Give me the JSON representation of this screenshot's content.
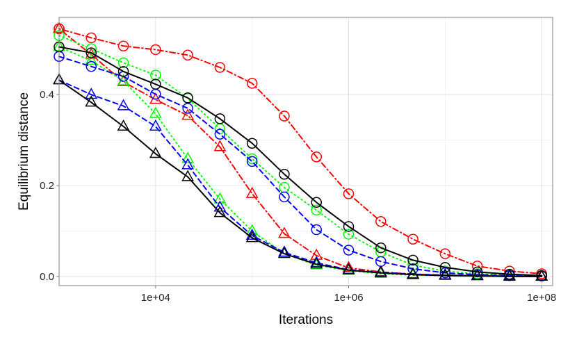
{
  "chart_data": {
    "type": "line",
    "title": "",
    "xlabel": "Iterations",
    "ylabel": "Equilibrium distance",
    "x_scale": "log10",
    "xlim": [
      1000,
      130000000
    ],
    "ylim": [
      -0.02,
      0.57
    ],
    "x_ticks": [
      10000,
      1000000,
      100000000
    ],
    "x_tick_labels": [
      "1e+04",
      "1e+06",
      "1e+08"
    ],
    "y_ticks": [
      0.0,
      0.2,
      0.4
    ],
    "y_tick_labels": [
      "0.0",
      "0.2",
      "0.4"
    ],
    "grid": true,
    "legend": "none",
    "series": [
      {
        "color": "#ff0000",
        "dash": "dotdash",
        "marker": "circle",
        "x": [
          1000,
          1000,
          2154,
          4642,
          10000,
          21544,
          46416,
          100000,
          215443,
          464159,
          1000000,
          2154435,
          4641589,
          10000000,
          21544347,
          46415888,
          100000000
        ],
        "y": [
          0.545,
          0.545,
          0.525,
          0.507,
          0.499,
          0.487,
          0.46,
          0.425,
          0.353,
          0.263,
          0.182,
          0.121,
          0.082,
          0.05,
          0.023,
          0.012,
          0.006
        ]
      },
      {
        "color": "#ff0000",
        "dash": "dotdash",
        "marker": "triangle",
        "x": [
          1000,
          1000,
          2154,
          4642,
          10000,
          21544,
          46416,
          100000,
          215443,
          464159,
          1000000,
          2154435,
          4641589,
          10000000,
          21544347,
          46415888,
          100000000
        ],
        "y": [
          0.545,
          0.545,
          0.488,
          0.428,
          0.389,
          0.354,
          0.285,
          0.182,
          0.094,
          0.046,
          0.019,
          0.01,
          0.005,
          0.003,
          0.002,
          0.001,
          0.0
        ]
      },
      {
        "color": "#00ff00",
        "dash": "dotted",
        "marker": "circle",
        "x": [
          1000,
          2154,
          4642,
          10000,
          21544,
          46416,
          100000,
          215443,
          464159,
          1000000,
          2154435,
          4641589,
          10000000,
          21544347,
          46415888,
          100000000
        ],
        "y": [
          0.53,
          0.501,
          0.47,
          0.443,
          0.392,
          0.325,
          0.259,
          0.196,
          0.146,
          0.093,
          0.054,
          0.025,
          0.012,
          0.006,
          0.003,
          0.002
        ]
      },
      {
        "color": "#00ff00",
        "dash": "dotted",
        "marker": "triangle",
        "x": [
          1000,
          2154,
          4642,
          10000,
          21544,
          46416,
          100000,
          215443,
          464159,
          1000000,
          2154435,
          4641589,
          10000000,
          21544347,
          46415888,
          100000000
        ],
        "y": [
          0.505,
          0.475,
          0.43,
          0.358,
          0.259,
          0.17,
          0.1,
          0.05,
          0.025,
          0.013,
          0.006,
          0.003,
          0.002,
          0.001,
          0.0,
          0.0
        ]
      },
      {
        "color": "#0000ff",
        "dash": "dashed",
        "marker": "circle",
        "x": [
          1000,
          2154,
          4642,
          10000,
          21544,
          46416,
          100000,
          215443,
          464159,
          1000000,
          2154435,
          4641589,
          10000000,
          21544347,
          46415888,
          100000000
        ],
        "y": [
          0.484,
          0.462,
          0.44,
          0.401,
          0.37,
          0.313,
          0.253,
          0.175,
          0.103,
          0.058,
          0.033,
          0.017,
          0.008,
          0.004,
          0.002,
          0.001
        ]
      },
      {
        "color": "#0000ff",
        "dash": "dashed",
        "marker": "triangle",
        "x": [
          1000,
          2154,
          4642,
          10000,
          21544,
          46416,
          100000,
          215443,
          464159,
          1000000,
          2154435,
          4641589,
          10000000,
          21544347,
          46415888,
          100000000
        ],
        "y": [
          0.432,
          0.4,
          0.375,
          0.33,
          0.245,
          0.152,
          0.09,
          0.053,
          0.03,
          0.015,
          0.009,
          0.005,
          0.003,
          0.002,
          0.001,
          0.0
        ]
      },
      {
        "color": "#000000",
        "dash": "solid",
        "marker": "circle",
        "x": [
          1000,
          2154,
          4642,
          10000,
          21544,
          46416,
          100000,
          215443,
          464159,
          1000000,
          2154435,
          4641589,
          10000000,
          21544347,
          46415888,
          100000000
        ],
        "y": [
          0.505,
          0.492,
          0.451,
          0.423,
          0.393,
          0.347,
          0.293,
          0.225,
          0.163,
          0.11,
          0.063,
          0.036,
          0.02,
          0.01,
          0.005,
          0.002
        ]
      },
      {
        "color": "#000000",
        "dash": "solid",
        "marker": "triangle",
        "x": [
          1000,
          2154,
          4642,
          10000,
          21544,
          46416,
          100000,
          215443,
          464159,
          1000000,
          2154435,
          4641589,
          10000000,
          21544347,
          46415888,
          100000000
        ],
        "y": [
          0.432,
          0.383,
          0.33,
          0.27,
          0.219,
          0.14,
          0.085,
          0.05,
          0.027,
          0.014,
          0.008,
          0.004,
          0.002,
          0.001,
          0.0,
          0.0
        ]
      }
    ]
  }
}
